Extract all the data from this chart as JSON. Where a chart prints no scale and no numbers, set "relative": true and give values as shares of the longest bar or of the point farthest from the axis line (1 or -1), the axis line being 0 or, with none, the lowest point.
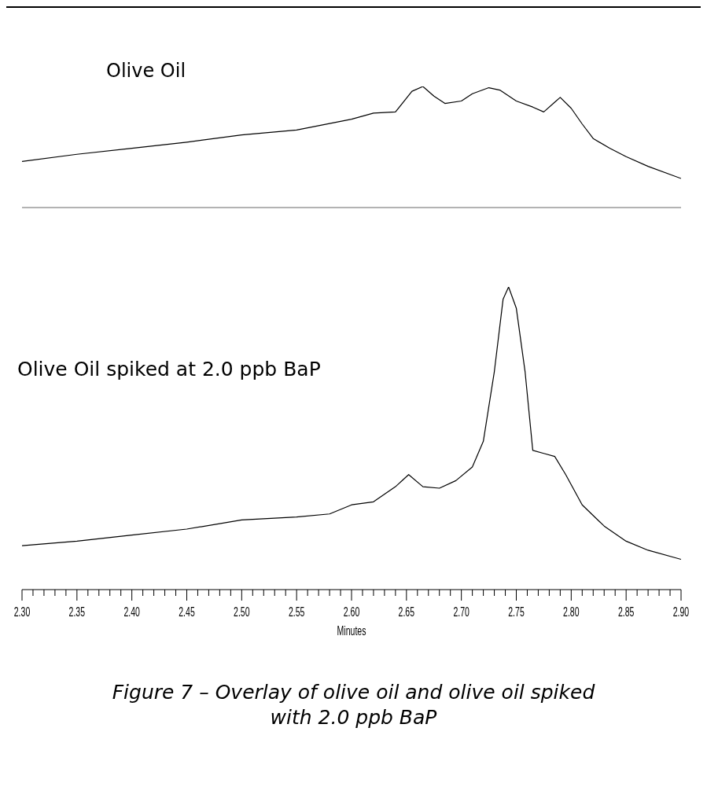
{
  "chart_data": [
    {
      "type": "line",
      "relative": true,
      "tick_labels": false,
      "xlim": [
        2.3,
        2.9
      ],
      "series": [
        {
          "name": "Olive Oil",
          "color": "#000000",
          "x": [
            2.3,
            2.35,
            2.4,
            2.45,
            2.5,
            2.55,
            2.6,
            2.62,
            2.64,
            2.655,
            2.665,
            2.675,
            2.685,
            2.7,
            2.71,
            2.725,
            2.735,
            2.75,
            2.765,
            2.775,
            2.785,
            2.79,
            2.8,
            2.81,
            2.82,
            2.835,
            2.85,
            2.87,
            2.9
          ],
          "values": [
            0.38,
            0.44,
            0.49,
            0.54,
            0.6,
            0.64,
            0.73,
            0.78,
            0.79,
            0.96,
            1,
            0.92,
            0.86,
            0.88,
            0.94,
            0.99,
            0.97,
            0.88,
            0.83,
            0.79,
            0.87,
            0.91,
            0.82,
            0.69,
            0.57,
            0.49,
            0.42,
            0.34,
            0.24
          ]
        }
      ]
    },
    {
      "type": "line",
      "relative": true,
      "tick_labels": "x",
      "xlabel": "Minutes",
      "xlim": [
        2.3,
        2.9
      ],
      "xticks": [
        {
          "value": 2.3,
          "label": "2.30"
        },
        {
          "value": 2.31,
          "label": null
        },
        {
          "value": 2.32,
          "label": null
        },
        {
          "value": 2.33,
          "label": null
        },
        {
          "value": 2.34,
          "label": null
        },
        {
          "value": 2.35,
          "label": "2.35"
        },
        {
          "value": 2.36,
          "label": null
        },
        {
          "value": 2.37,
          "label": null
        },
        {
          "value": 2.38,
          "label": null
        },
        {
          "value": 2.39,
          "label": null
        },
        {
          "value": 2.4,
          "label": "2.40"
        },
        {
          "value": 2.41,
          "label": null
        },
        {
          "value": 2.42,
          "label": null
        },
        {
          "value": 2.43,
          "label": null
        },
        {
          "value": 2.44,
          "label": null
        },
        {
          "value": 2.45,
          "label": "2.45"
        },
        {
          "value": 2.46,
          "label": null
        },
        {
          "value": 2.47,
          "label": null
        },
        {
          "value": 2.48,
          "label": null
        },
        {
          "value": 2.49,
          "label": null
        },
        {
          "value": 2.5,
          "label": "2.50"
        },
        {
          "value": 2.51,
          "label": null
        },
        {
          "value": 2.52,
          "label": null
        },
        {
          "value": 2.53,
          "label": null
        },
        {
          "value": 2.54,
          "label": null
        },
        {
          "value": 2.55,
          "label": "2.55"
        },
        {
          "value": 2.56,
          "label": null
        },
        {
          "value": 2.57,
          "label": null
        },
        {
          "value": 2.58,
          "label": null
        },
        {
          "value": 2.59,
          "label": null
        },
        {
          "value": 2.6,
          "label": "2.60"
        },
        {
          "value": 2.61,
          "label": null
        },
        {
          "value": 2.62,
          "label": null
        },
        {
          "value": 2.63,
          "label": null
        },
        {
          "value": 2.64,
          "label": null
        },
        {
          "value": 2.65,
          "label": "2.65"
        },
        {
          "value": 2.66,
          "label": null
        },
        {
          "value": 2.67,
          "label": null
        },
        {
          "value": 2.68,
          "label": null
        },
        {
          "value": 2.69,
          "label": null
        },
        {
          "value": 2.7,
          "label": "2.70"
        },
        {
          "value": 2.71,
          "label": null
        },
        {
          "value": 2.72,
          "label": null
        },
        {
          "value": 2.73,
          "label": null
        },
        {
          "value": 2.74,
          "label": null
        },
        {
          "value": 2.75,
          "label": "2.75"
        },
        {
          "value": 2.76,
          "label": null
        },
        {
          "value": 2.77,
          "label": null
        },
        {
          "value": 2.78,
          "label": null
        },
        {
          "value": 2.79,
          "label": null
        },
        {
          "value": 2.8,
          "label": "2.80"
        },
        {
          "value": 2.81,
          "label": null
        },
        {
          "value": 2.82,
          "label": null
        },
        {
          "value": 2.83,
          "label": null
        },
        {
          "value": 2.84,
          "label": null
        },
        {
          "value": 2.85,
          "label": "2.85"
        },
        {
          "value": 2.86,
          "label": null
        },
        {
          "value": 2.87,
          "label": null
        },
        {
          "value": 2.88,
          "label": null
        },
        {
          "value": 2.89,
          "label": null
        },
        {
          "value": 2.9,
          "label": "2.90"
        }
      ],
      "annotations": [
        "Figure 7 – Overlay of olive oil and olive oil spiked with 2.0 ppb BaP"
      ],
      "series": [
        {
          "name": "Olive Oil spiked at 2.0 ppb BaP",
          "color": "#000000",
          "x": [
            2.3,
            2.35,
            2.4,
            2.45,
            2.5,
            2.55,
            2.58,
            2.6,
            2.62,
            2.64,
            2.652,
            2.665,
            2.68,
            2.695,
            2.71,
            2.72,
            2.73,
            2.738,
            2.743,
            2.75,
            2.758,
            2.765,
            2.775,
            2.785,
            2.795,
            2.81,
            2.83,
            2.85,
            2.87,
            2.9
          ],
          "values": [
            0.145,
            0.16,
            0.18,
            0.2,
            0.23,
            0.24,
            0.25,
            0.28,
            0.29,
            0.34,
            0.38,
            0.34,
            0.335,
            0.36,
            0.405,
            0.49,
            0.72,
            0.96,
            1,
            0.93,
            0.72,
            0.46,
            0.45,
            0.44,
            0.38,
            0.28,
            0.21,
            0.16,
            0.13,
            0.1
          ]
        }
      ]
    }
  ]
}
